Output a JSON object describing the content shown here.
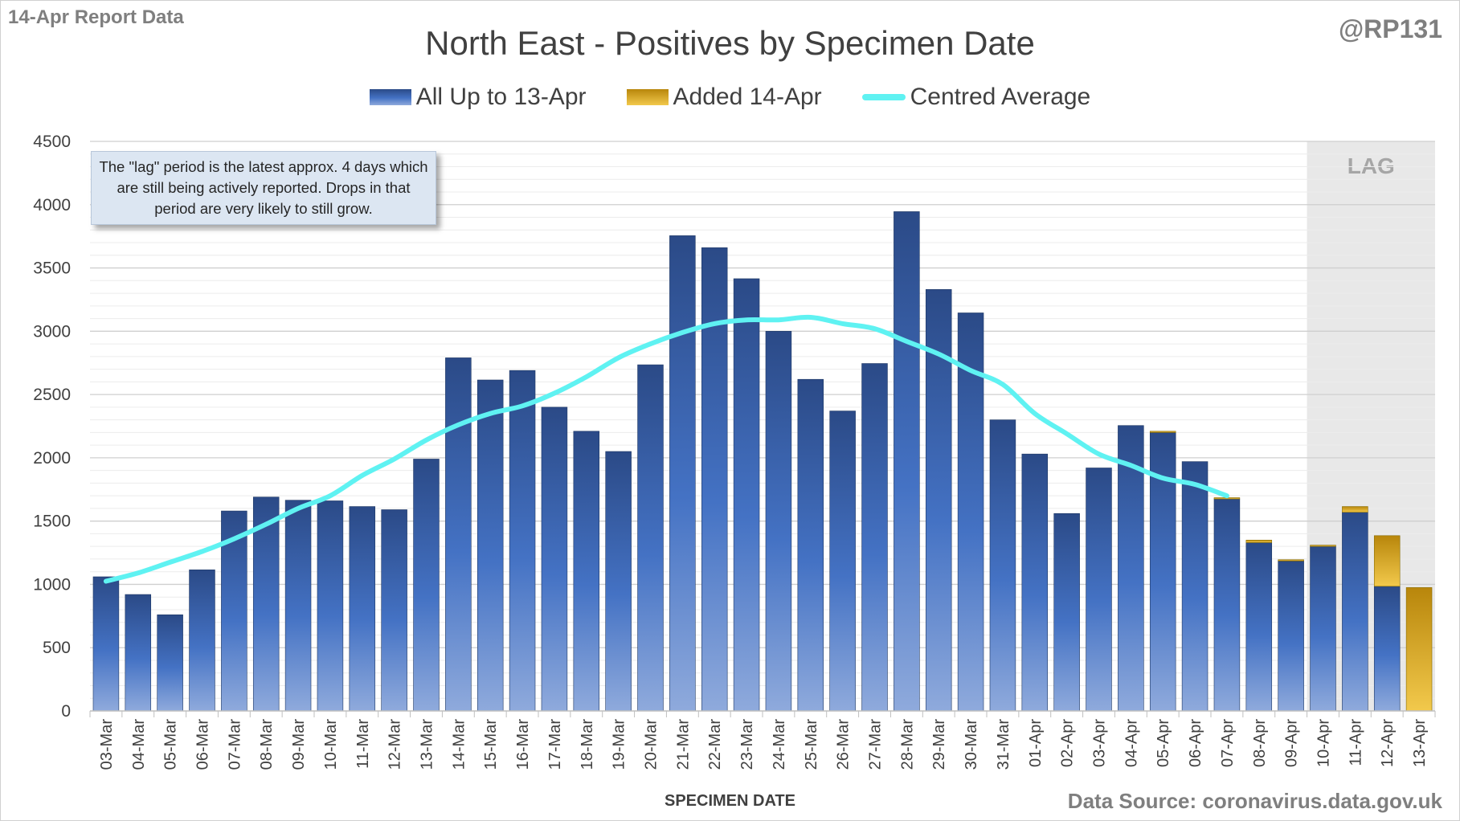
{
  "header": {
    "report_label": "14-Apr Report Data",
    "handle": "@RP131"
  },
  "footer": {
    "source": "Data Source: coronavirus.data.gov.uk"
  },
  "annotation": {
    "note": "The \"lag\" period is the latest approx. 4 days which are still being actively reported. Drops in that period are very likely to still grow.",
    "lag_label": "LAG"
  },
  "colors": {
    "bar_top": "#2b4a87",
    "bar_mid": "#4472c4",
    "bar_bottom": "#8faadc",
    "added_top": "#b8860b",
    "added_bottom": "#f2c94c",
    "average": "#5ff2f2",
    "lag_shade": "#e8e8e8",
    "grid": "#d9d9d9",
    "axis_text": "#404040"
  },
  "chart_data": {
    "type": "bar",
    "title": "North East - Positives by Specimen Date",
    "xlabel": "SPECIMEN DATE",
    "ylabel": "",
    "ylim": [
      0,
      4500
    ],
    "yticks": [
      0,
      500,
      1000,
      1500,
      2000,
      2500,
      3000,
      3500,
      4000,
      4500
    ],
    "grid": true,
    "legend_position": "top-center",
    "stacked": true,
    "lag_categories": [
      "10-Apr",
      "11-Apr",
      "12-Apr",
      "13-Apr"
    ],
    "categories": [
      "03-Mar",
      "04-Mar",
      "05-Mar",
      "06-Mar",
      "07-Mar",
      "08-Mar",
      "09-Mar",
      "10-Mar",
      "11-Mar",
      "12-Mar",
      "13-Mar",
      "14-Mar",
      "15-Mar",
      "16-Mar",
      "17-Mar",
      "18-Mar",
      "19-Mar",
      "20-Mar",
      "21-Mar",
      "22-Mar",
      "23-Mar",
      "24-Mar",
      "25-Mar",
      "26-Mar",
      "27-Mar",
      "28-Mar",
      "29-Mar",
      "30-Mar",
      "31-Mar",
      "01-Apr",
      "02-Apr",
      "03-Apr",
      "04-Apr",
      "05-Apr",
      "06-Apr",
      "07-Apr",
      "08-Apr",
      "09-Apr",
      "10-Apr",
      "11-Apr",
      "12-Apr",
      "13-Apr"
    ],
    "series": [
      {
        "name": "All Up to 13-Apr",
        "kind": "bar",
        "values": [
          1060,
          920,
          760,
          1115,
          1580,
          1690,
          1665,
          1660,
          1615,
          1590,
          1990,
          2790,
          2615,
          2690,
          2400,
          2210,
          2050,
          2735,
          3755,
          3660,
          3415,
          3000,
          2620,
          2370,
          2745,
          3945,
          3330,
          3145,
          2300,
          2030,
          1560,
          1920,
          2255,
          2200,
          1970,
          1675,
          1330,
          1185,
          1300,
          1570,
          985,
          0
        ]
      },
      {
        "name": "Added 14-Apr",
        "kind": "bar",
        "values": [
          0,
          0,
          0,
          0,
          0,
          0,
          0,
          0,
          0,
          0,
          0,
          0,
          0,
          0,
          0,
          0,
          0,
          0,
          0,
          0,
          0,
          0,
          0,
          0,
          0,
          0,
          0,
          0,
          0,
          0,
          0,
          0,
          0,
          10,
          0,
          10,
          20,
          10,
          10,
          45,
          400,
          975
        ]
      },
      {
        "name": "Centred Average",
        "kind": "line",
        "values": [
          1025,
          1090,
          1175,
          1260,
          1360,
          1475,
          1600,
          1700,
          1860,
          1990,
          2140,
          2260,
          2350,
          2410,
          2510,
          2640,
          2790,
          2900,
          2990,
          3060,
          3090,
          3090,
          3110,
          3060,
          3020,
          2920,
          2820,
          2690,
          2580,
          2350,
          2190,
          2030,
          1940,
          1840,
          1790,
          1700,
          null,
          null,
          null,
          null,
          null,
          null
        ]
      }
    ]
  }
}
